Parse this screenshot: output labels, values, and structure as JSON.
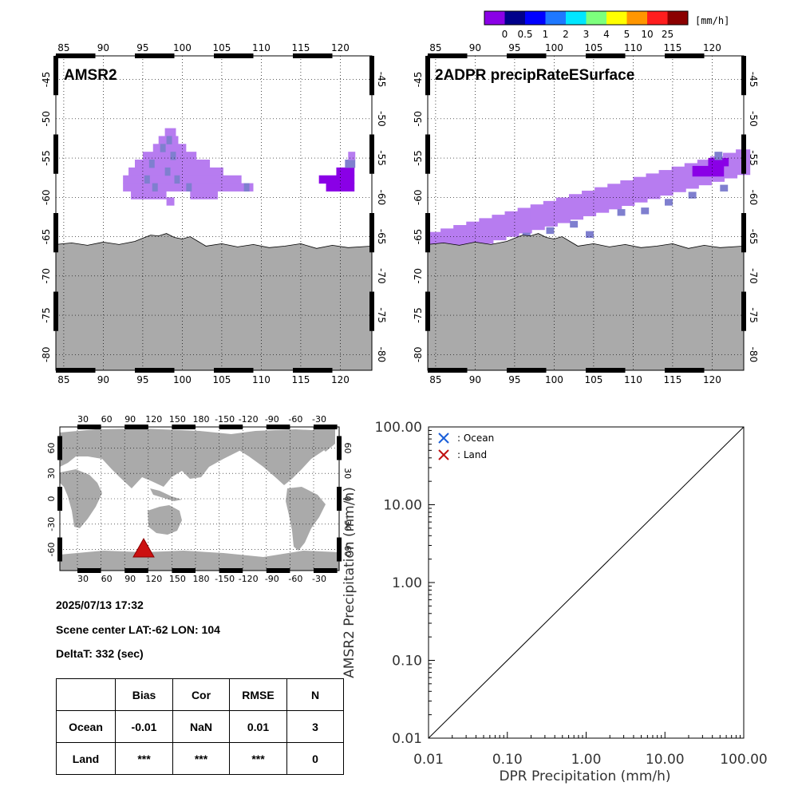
{
  "colorbar": {
    "unit": "[mm/h]",
    "labels": [
      "0",
      "0.5",
      "1",
      "2",
      "3",
      "4",
      "5",
      "10",
      "25"
    ],
    "colors": [
      "#8a00e6",
      "#00008b",
      "#0000ff",
      "#1e78ff",
      "#00e6ff",
      "#7dff7d",
      "#ffff00",
      "#ff9600",
      "#ff1e1e",
      "#8b0000"
    ]
  },
  "colors": {
    "land": "#aaaaaa",
    "light_rain": "#b77cf0",
    "moderate_rain": "#7f7fcf",
    "heavy_rain": "#8a00e6",
    "marker": "#cc1111",
    "ocean_marker": "#1a5fd8",
    "land_marker": "#c01010"
  },
  "map_lon_ticks": [
    "85",
    "90",
    "95",
    "100",
    "105",
    "110",
    "115",
    "120"
  ],
  "map_lat_ticks": [
    "-45",
    "-50",
    "-55",
    "-60",
    "-65",
    "-70",
    "-75",
    "-80"
  ],
  "panels": {
    "amsr2": {
      "title": "AMSR2"
    },
    "dpr": {
      "title": "2ADPR precipRateESurface"
    }
  },
  "world_map": {
    "lon_ticks": [
      "30",
      "60",
      "90",
      "120",
      "150",
      "180",
      "-150",
      "-120",
      "-90",
      "-60",
      "-30"
    ],
    "lat_ticks": [
      "60",
      "30",
      "0",
      "-30",
      "-60"
    ],
    "marker_icon": "triangle-marker-icon"
  },
  "info": {
    "datetime": "2025/07/13 17:32",
    "scene_center": "Scene center LAT:-62   LON: 104",
    "delta_t": "DeltaT:  332 (sec)"
  },
  "stats_table": {
    "headers": [
      "",
      "Bias",
      "Cor",
      "RMSE",
      "N"
    ],
    "rows": [
      {
        "label": "Ocean",
        "bias": "-0.01",
        "cor": "NaN",
        "rmse": "0.01",
        "n": "3"
      },
      {
        "label": "Land",
        "bias": "***",
        "cor": "***",
        "rmse": "***",
        "n": "0"
      }
    ]
  },
  "chart_data": {
    "type": "scatter",
    "xlabel": "DPR Precipitation (mm/h)",
    "ylabel": "AMSR2 Precipitation (mm/h)",
    "x_scale": "log",
    "y_scale": "log",
    "xlim": [
      0.01,
      100
    ],
    "ylim": [
      0.01,
      100
    ],
    "x_tick_labels": [
      "0.01",
      "0.10",
      "1.00",
      "10.00",
      "100.00"
    ],
    "y_tick_labels": [
      "0.01",
      "0.10",
      "1.00",
      "10.00",
      "100.00"
    ],
    "legend": [
      {
        "label": ": Ocean",
        "color": "#1a5fd8",
        "marker": "x"
      },
      {
        "label": ": Land",
        "color": "#c01010",
        "marker": "x"
      }
    ],
    "legend_position": "top-left",
    "reference_line": "1:1",
    "series": []
  }
}
